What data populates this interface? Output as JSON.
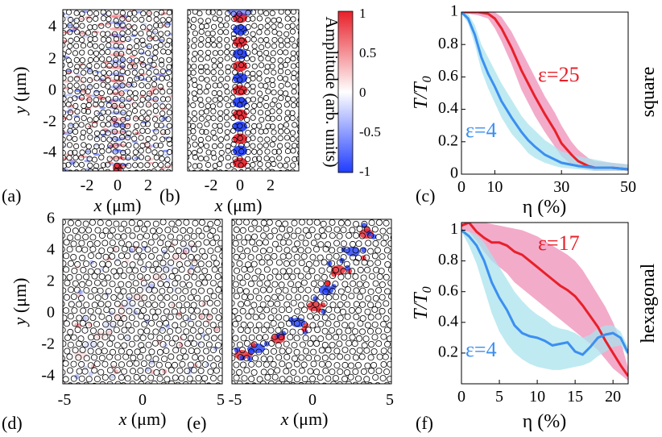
{
  "colors": {
    "red": "#e8202a",
    "blue": "#3b8ff0",
    "pink": "#ef8fb8",
    "cyan": "#a9e3ee"
  },
  "panels": {
    "a": {
      "label": "(a)",
      "xlabel": "x (μm)",
      "ylabel": "y (μm)",
      "xticks": [
        "-2",
        "0",
        "2"
      ],
      "yticks": [
        "4",
        "2",
        "0",
        "-2",
        "-4"
      ]
    },
    "b": {
      "label": "(b)",
      "xlabel": "x (μm)",
      "xticks": [
        "-2",
        "0",
        "2"
      ]
    },
    "d": {
      "label": "(d)",
      "xlabel": "x (μm)",
      "ylabel": "y (μm)",
      "xticks": [
        "-5",
        "0",
        "5"
      ],
      "yticks": [
        "6",
        "4",
        "2",
        "0",
        "-2",
        "-4"
      ]
    },
    "e": {
      "label": "(e)",
      "xlabel": "x (μm)",
      "xticks": [
        "-5",
        "0",
        "5"
      ]
    }
  },
  "colorbar": {
    "label": "Amplitude (arb. units)",
    "ticks": [
      "1",
      "0.5",
      "0",
      "-0.5",
      "-1"
    ]
  },
  "chart_data": [
    {
      "id": "c",
      "type": "line",
      "panel_label": "(c)",
      "side_label": "square",
      "xlabel": "η (%)",
      "ylabel": "T/T0",
      "xlim": [
        0,
        50
      ],
      "ylim": [
        0,
        1
      ],
      "xticks": [
        "0",
        "10",
        "30",
        "50"
      ],
      "yticks": [
        "1",
        "0.8",
        "0.6",
        "0.4",
        "0.2",
        "0"
      ],
      "series": [
        {
          "name": "ε=25",
          "color": "red",
          "x": [
            0,
            2,
            5,
            8,
            10,
            12,
            15,
            18,
            20,
            22,
            25,
            28,
            30,
            33,
            35,
            38,
            40,
            45,
            50
          ],
          "values": [
            1.0,
            1.0,
            1.0,
            0.99,
            0.96,
            0.9,
            0.78,
            0.64,
            0.56,
            0.48,
            0.37,
            0.27,
            0.19,
            0.12,
            0.08,
            0.05,
            0.04,
            0.04,
            0.03
          ],
          "band_low": [
            0.99,
            0.99,
            0.98,
            0.96,
            0.9,
            0.82,
            0.68,
            0.52,
            0.44,
            0.36,
            0.26,
            0.17,
            0.11,
            0.06,
            0.04,
            0.03,
            0.02,
            0.02,
            0.02
          ],
          "band_high": [
            1.0,
            1.0,
            1.0,
            1.0,
            1.0,
            0.97,
            0.88,
            0.76,
            0.68,
            0.6,
            0.48,
            0.38,
            0.3,
            0.2,
            0.15,
            0.1,
            0.08,
            0.07,
            0.06
          ]
        },
        {
          "name": "ε=4",
          "color": "blue",
          "x": [
            0,
            2,
            4,
            6,
            8,
            10,
            12,
            15,
            18,
            20,
            22,
            25,
            28,
            30,
            35,
            40,
            45,
            50
          ],
          "values": [
            1.0,
            0.96,
            0.86,
            0.72,
            0.62,
            0.54,
            0.45,
            0.35,
            0.26,
            0.21,
            0.17,
            0.12,
            0.09,
            0.07,
            0.05,
            0.04,
            0.04,
            0.03
          ],
          "band_low": [
            0.99,
            0.93,
            0.8,
            0.64,
            0.53,
            0.44,
            0.35,
            0.25,
            0.18,
            0.13,
            0.1,
            0.07,
            0.05,
            0.04,
            0.03,
            0.02,
            0.02,
            0.02
          ],
          "band_high": [
            1.0,
            0.99,
            0.92,
            0.8,
            0.72,
            0.64,
            0.56,
            0.46,
            0.36,
            0.31,
            0.27,
            0.21,
            0.17,
            0.14,
            0.11,
            0.09,
            0.07,
            0.06
          ]
        }
      ]
    },
    {
      "id": "f",
      "type": "line",
      "panel_label": "(f)",
      "side_label": "hexagonal",
      "xlabel": "η (%)",
      "ylabel": "T/T0",
      "xlim": [
        0,
        22
      ],
      "ylim": [
        0,
        1.05
      ],
      "xticks": [
        "0",
        "5",
        "10",
        "15",
        "20"
      ],
      "yticks": [
        "1",
        "0.8",
        "0.6",
        "0.4",
        "0.2"
      ],
      "series": [
        {
          "name": "ε=17",
          "color": "red",
          "x": [
            0,
            1,
            2,
            3,
            4,
            5,
            6,
            7,
            8,
            9,
            10,
            11,
            12,
            13,
            14,
            15,
            16,
            17,
            18,
            19,
            20,
            21,
            22
          ],
          "values": [
            1.03,
            1.05,
            0.99,
            0.95,
            0.92,
            0.92,
            0.9,
            0.86,
            0.84,
            0.8,
            0.76,
            0.72,
            0.68,
            0.64,
            0.61,
            0.57,
            0.51,
            0.44,
            0.37,
            0.28,
            0.2,
            0.12,
            0.05
          ],
          "band_low": [
            1.0,
            0.99,
            0.93,
            0.86,
            0.8,
            0.76,
            0.72,
            0.66,
            0.62,
            0.58,
            0.54,
            0.5,
            0.46,
            0.42,
            0.38,
            0.34,
            0.3,
            0.26,
            0.22,
            0.16,
            0.1,
            0.06,
            0.02
          ],
          "band_high": [
            1.05,
            1.05,
            1.05,
            1.05,
            1.04,
            1.03,
            1.02,
            1.01,
            1.0,
            0.98,
            0.96,
            0.93,
            0.9,
            0.87,
            0.84,
            0.8,
            0.74,
            0.66,
            0.58,
            0.5,
            0.4,
            0.28,
            0.1
          ]
        },
        {
          "name": "ε=4",
          "color": "blue",
          "x": [
            0,
            1,
            2,
            3,
            4,
            5,
            6,
            7,
            8,
            9,
            10,
            11,
            12,
            13,
            14,
            15,
            16,
            17,
            18,
            19,
            20,
            21,
            22
          ],
          "values": [
            1.0,
            0.96,
            0.9,
            0.8,
            0.66,
            0.56,
            0.48,
            0.38,
            0.33,
            0.31,
            0.3,
            0.28,
            0.25,
            0.26,
            0.27,
            0.21,
            0.19,
            0.24,
            0.3,
            0.32,
            0.33,
            0.3,
            0.2
          ],
          "band_low": [
            0.99,
            0.9,
            0.78,
            0.62,
            0.46,
            0.34,
            0.26,
            0.2,
            0.16,
            0.13,
            0.11,
            0.1,
            0.09,
            0.09,
            0.1,
            0.11,
            0.12,
            0.14,
            0.18,
            0.21,
            0.24,
            0.25,
            0.18
          ],
          "band_high": [
            1.0,
            0.99,
            0.97,
            0.92,
            0.84,
            0.76,
            0.68,
            0.6,
            0.54,
            0.49,
            0.45,
            0.42,
            0.38,
            0.36,
            0.35,
            0.33,
            0.3,
            0.32,
            0.36,
            0.38,
            0.38,
            0.34,
            0.24
          ]
        }
      ]
    }
  ]
}
